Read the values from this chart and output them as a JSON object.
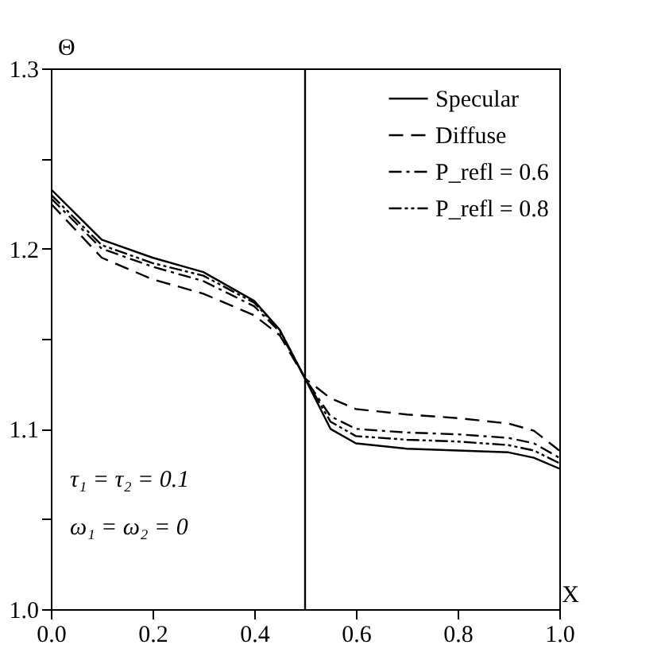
{
  "chart_data": {
    "type": "line",
    "xlabel": "X",
    "ylabel": "Θ",
    "xlim": [
      0.0,
      1.0
    ],
    "ylim": [
      1.0,
      1.3
    ],
    "xticks": [
      {
        "value": 0,
        "label": "0.0"
      },
      0.2,
      0.4,
      0.6,
      0.8,
      {
        "value": 1,
        "label": "1.0"
      }
    ],
    "yticks": [
      {
        "value": 1,
        "label": "1.0"
      },
      {
        "value": 1.05,
        "label": null
      },
      1.1,
      {
        "value": 1.15,
        "label": null
      },
      1.2,
      {
        "value": 1.25,
        "label": null
      },
      1.3
    ],
    "x": [
      0.0,
      0.1,
      0.2,
      0.3,
      0.4,
      0.45,
      0.5,
      0.55,
      0.6,
      0.7,
      0.8,
      0.9,
      0.95,
      1.0
    ],
    "series": [
      {
        "name": "Specular",
        "color": "#000000",
        "line_style": "solid",
        "values": [
          1.233,
          1.205,
          1.195,
          1.187,
          1.171,
          1.155,
          1.128,
          1.1,
          1.092,
          1.089,
          1.088,
          1.087,
          1.084,
          1.078
        ]
      },
      {
        "name": "Diffuse",
        "color": "#000000",
        "line_style": "dashed",
        "values": [
          1.225,
          1.195,
          1.183,
          1.175,
          1.163,
          1.152,
          1.128,
          1.117,
          1.111,
          1.108,
          1.106,
          1.103,
          1.099,
          1.088
        ]
      },
      {
        "name": "P_refl = 0.6",
        "color": "#000000",
        "line_style": "dashdot",
        "values": [
          1.228,
          1.2,
          1.19,
          1.182,
          1.168,
          1.154,
          1.128,
          1.107,
          1.1,
          1.098,
          1.097,
          1.095,
          1.092,
          1.084
        ]
      },
      {
        "name": "P_refl = 0.8",
        "color": "#000000",
        "line_style": "dashdotdot",
        "values": [
          1.23,
          1.202,
          1.192,
          1.185,
          1.17,
          1.155,
          1.128,
          1.104,
          1.096,
          1.094,
          1.093,
          1.091,
          1.088,
          1.081
        ]
      }
    ],
    "ref_lines": [
      {
        "axis": "x",
        "value": 0.5,
        "color": "#000000",
        "line_style": "solid"
      }
    ],
    "annotations": [
      "τ₁ = τ₂ = 0.1",
      "ω₁ = ω₂ = 0"
    ],
    "legend": "top right",
    "grid": false
  }
}
